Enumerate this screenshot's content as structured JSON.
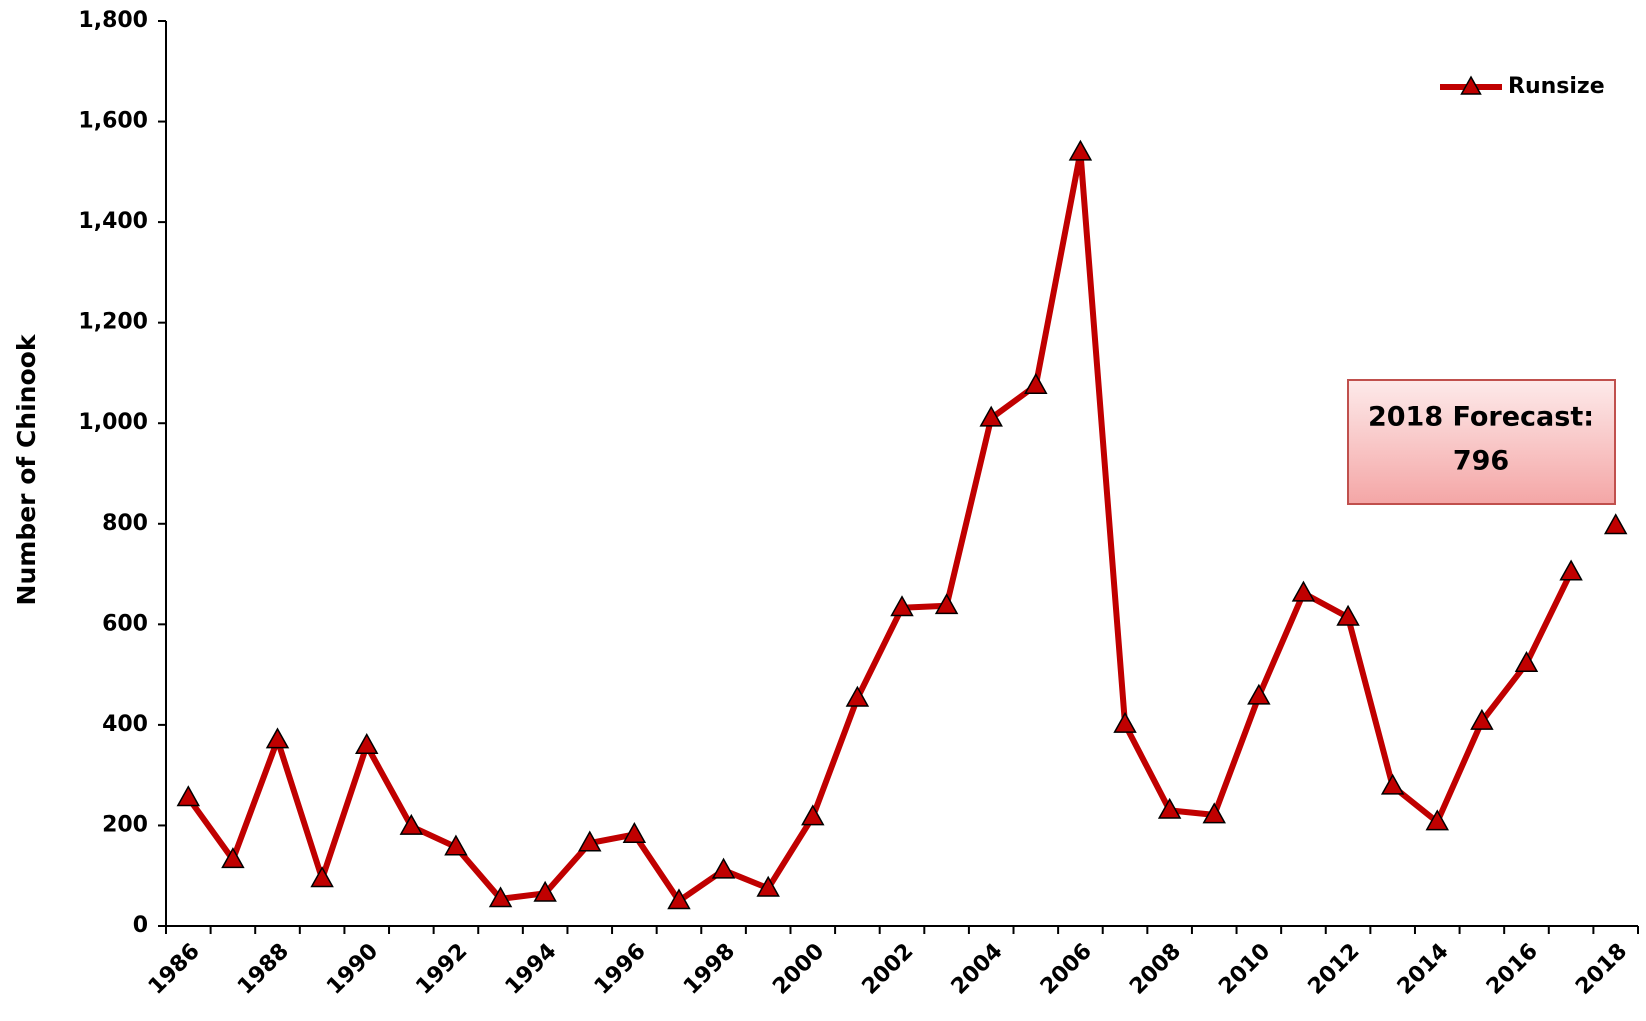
{
  "chart_data": {
    "type": "line",
    "y_label": "Number of Chinook",
    "categories": [
      "1986",
      null,
      "1988",
      null,
      "1990",
      null,
      "1992",
      null,
      "1994",
      null,
      "1996",
      null,
      "1998",
      null,
      "2000",
      null,
      "2002",
      null,
      "2004",
      null,
      "2006",
      null,
      "2008",
      null,
      "2010",
      null,
      "2012",
      null,
      "2014",
      null,
      "2016",
      null,
      "2018"
    ],
    "series": [
      {
        "name": "Runsize",
        "color": "#c00000",
        "values": [
          255,
          132,
          370,
          94,
          359,
          198,
          157,
          54,
          65,
          165,
          182,
          50,
          111,
          75,
          217,
          453,
          633,
          637,
          1010,
          1075,
          1539,
          401,
          230,
          221,
          457,
          662,
          614,
          278,
          207,
          407,
          522,
          704,
          null
        ]
      }
    ],
    "forecast": {
      "label": "2018 Forecast:",
      "value": 796,
      "category_index": 32
    },
    "ylim": [
      0,
      1800
    ],
    "yticks": [
      {
        "value": 0,
        "label": "0"
      },
      {
        "value": 200,
        "label": "200"
      },
      {
        "value": 400,
        "label": "400"
      },
      {
        "value": 600,
        "label": "600"
      },
      {
        "value": 800,
        "label": "800"
      },
      {
        "value": 1000,
        "label": "1,000"
      },
      {
        "value": 1200,
        "label": "1,200"
      },
      {
        "value": 1400,
        "label": "1,400"
      },
      {
        "value": 1600,
        "label": "1,600"
      },
      {
        "value": 1800,
        "label": "1,800"
      }
    ],
    "legend": "top-right"
  }
}
